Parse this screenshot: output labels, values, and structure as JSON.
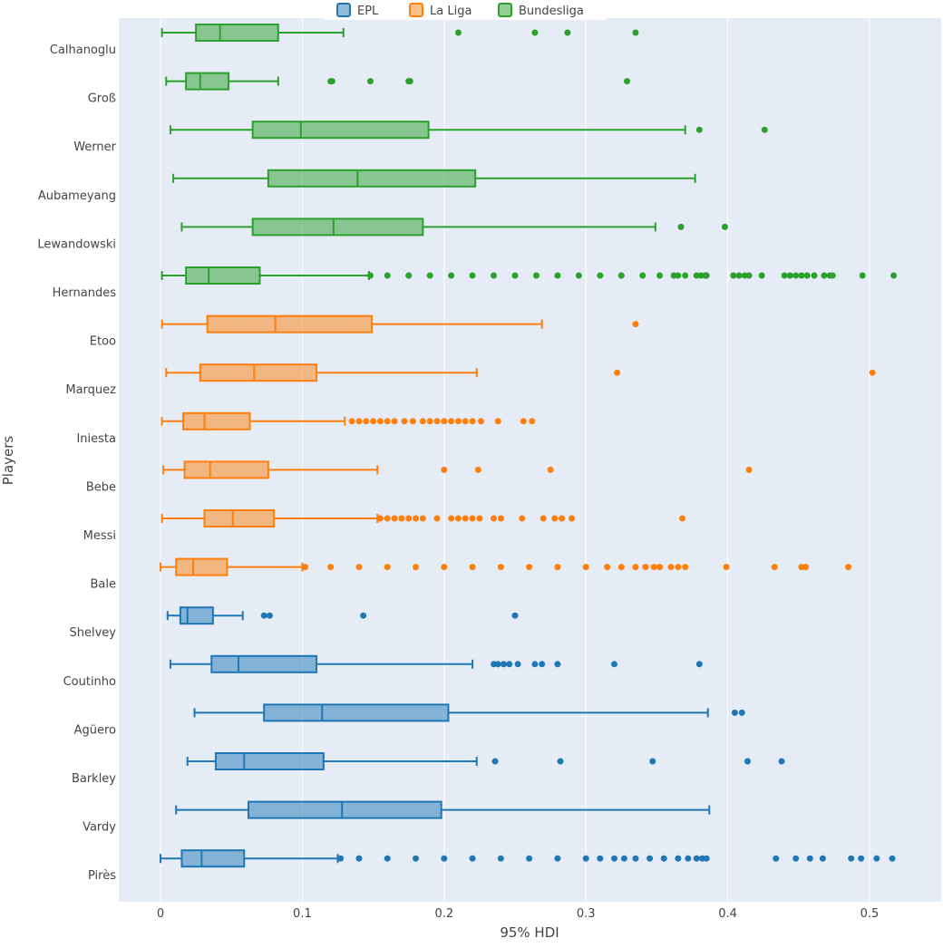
{
  "chart_data": {
    "type": "box",
    "orientation": "horizontal",
    "xlabel": "95% HDI",
    "ylabel": "Players",
    "xlim": [
      -0.03,
      0.55
    ],
    "xticks": [
      0,
      0.1,
      0.2,
      0.3,
      0.4,
      0.5
    ],
    "xtick_labels": [
      "0",
      "0.1",
      "0.2",
      "0.3",
      "0.4",
      "0.5"
    ],
    "legend": {
      "position": "top",
      "entries": [
        {
          "name": "EPL",
          "color": "#1f77b4"
        },
        {
          "name": "La Liga",
          "color": "#ff7f0e"
        },
        {
          "name": "Bundesliga",
          "color": "#2ca02c"
        }
      ]
    },
    "players": [
      {
        "name": "Calhanoglu",
        "league": "Bundesliga",
        "min": 0.001,
        "q1": 0.025,
        "median": 0.042,
        "q3": 0.083,
        "max": 0.129,
        "outliers": [
          0.21,
          0.264,
          0.287,
          0.335
        ]
      },
      {
        "name": "Groß",
        "league": "Bundesliga",
        "min": 0.004,
        "q1": 0.018,
        "median": 0.028,
        "q3": 0.048,
        "max": 0.083,
        "outliers": [
          0.12,
          0.121,
          0.148,
          0.175,
          0.176,
          0.329
        ]
      },
      {
        "name": "Werner",
        "league": "Bundesliga",
        "min": 0.007,
        "q1": 0.065,
        "median": 0.099,
        "q3": 0.189,
        "max": 0.37,
        "outliers": [
          0.38,
          0.426
        ]
      },
      {
        "name": "Aubameyang",
        "league": "Bundesliga",
        "min": 0.009,
        "q1": 0.076,
        "median": 0.139,
        "q3": 0.222,
        "max": 0.377,
        "outliers": []
      },
      {
        "name": "Lewandowski",
        "league": "Bundesliga",
        "min": 0.015,
        "q1": 0.065,
        "median": 0.122,
        "q3": 0.185,
        "max": 0.349,
        "outliers": [
          0.367,
          0.398
        ]
      },
      {
        "name": "Hernandes",
        "league": "Bundesliga",
        "min": 0.001,
        "q1": 0.018,
        "median": 0.034,
        "q3": 0.07,
        "max": 0.147,
        "outliers": [
          0.148,
          0.16,
          0.175,
          0.19,
          0.205,
          0.22,
          0.235,
          0.25,
          0.265,
          0.28,
          0.295,
          0.31,
          0.325,
          0.34,
          0.352,
          0.362,
          0.365,
          0.37,
          0.378,
          0.381,
          0.384,
          0.385,
          0.404,
          0.408,
          0.412,
          0.415,
          0.424,
          0.44,
          0.444,
          0.448,
          0.452,
          0.456,
          0.461,
          0.468,
          0.472,
          0.474,
          0.495,
          0.517
        ]
      },
      {
        "name": "Etoo",
        "league": "La Liga",
        "min": 0.001,
        "q1": 0.033,
        "median": 0.081,
        "q3": 0.149,
        "max": 0.269,
        "outliers": [
          0.335
        ]
      },
      {
        "name": "Marquez",
        "league": "La Liga",
        "min": 0.004,
        "q1": 0.028,
        "median": 0.066,
        "q3": 0.11,
        "max": 0.223,
        "outliers": [
          0.322,
          0.502
        ]
      },
      {
        "name": "Iniesta",
        "league": "La Liga",
        "min": 0.001,
        "q1": 0.016,
        "median": 0.031,
        "q3": 0.063,
        "max": 0.13,
        "outliers": [
          0.135,
          0.14,
          0.145,
          0.15,
          0.155,
          0.16,
          0.165,
          0.172,
          0.178,
          0.185,
          0.19,
          0.195,
          0.2,
          0.205,
          0.21,
          0.215,
          0.22,
          0.226,
          0.238,
          0.256,
          0.262
        ]
      },
      {
        "name": "Bebe",
        "league": "La Liga",
        "min": 0.002,
        "q1": 0.017,
        "median": 0.035,
        "q3": 0.076,
        "max": 0.153,
        "outliers": [
          0.2,
          0.224,
          0.275,
          0.415
        ]
      },
      {
        "name": "Messi",
        "league": "La Liga",
        "min": 0.001,
        "q1": 0.031,
        "median": 0.051,
        "q3": 0.08,
        "max": 0.153,
        "outliers": [
          0.155,
          0.16,
          0.165,
          0.17,
          0.175,
          0.18,
          0.185,
          0.195,
          0.205,
          0.21,
          0.215,
          0.22,
          0.225,
          0.235,
          0.24,
          0.255,
          0.27,
          0.278,
          0.283,
          0.29,
          0.368
        ]
      },
      {
        "name": "Bale",
        "league": "La Liga",
        "min": 0.0,
        "q1": 0.011,
        "median": 0.023,
        "q3": 0.047,
        "max": 0.1,
        "outliers": [
          0.102,
          0.12,
          0.14,
          0.16,
          0.18,
          0.2,
          0.22,
          0.24,
          0.26,
          0.28,
          0.3,
          0.315,
          0.325,
          0.335,
          0.342,
          0.348,
          0.352,
          0.36,
          0.365,
          0.37,
          0.399,
          0.433,
          0.452,
          0.455,
          0.485
        ]
      },
      {
        "name": "Shelvey",
        "league": "EPL",
        "min": 0.005,
        "q1": 0.014,
        "median": 0.019,
        "q3": 0.037,
        "max": 0.058,
        "outliers": [
          0.073,
          0.077,
          0.143,
          0.25
        ]
      },
      {
        "name": "Coutinho",
        "league": "EPL",
        "min": 0.007,
        "q1": 0.036,
        "median": 0.055,
        "q3": 0.11,
        "max": 0.22,
        "outliers": [
          0.235,
          0.238,
          0.242,
          0.246,
          0.252,
          0.264,
          0.269,
          0.28,
          0.32,
          0.38
        ]
      },
      {
        "name": "Agüero",
        "league": "EPL",
        "min": 0.024,
        "q1": 0.073,
        "median": 0.114,
        "q3": 0.203,
        "max": 0.386,
        "outliers": [
          0.405,
          0.41
        ]
      },
      {
        "name": "Barkley",
        "league": "EPL",
        "min": 0.019,
        "q1": 0.039,
        "median": 0.059,
        "q3": 0.115,
        "max": 0.223,
        "outliers": [
          0.236,
          0.282,
          0.347,
          0.414,
          0.438
        ]
      },
      {
        "name": "Vardy",
        "league": "EPL",
        "min": 0.011,
        "q1": 0.062,
        "median": 0.128,
        "q3": 0.198,
        "max": 0.387,
        "outliers": []
      },
      {
        "name": "Pirès",
        "league": "EPL",
        "min": 0.0,
        "q1": 0.015,
        "median": 0.029,
        "q3": 0.059,
        "max": 0.125,
        "outliers": [
          0.127,
          0.14,
          0.16,
          0.18,
          0.2,
          0.22,
          0.24,
          0.26,
          0.28,
          0.3,
          0.31,
          0.32,
          0.327,
          0.335,
          0.345,
          0.355,
          0.365,
          0.372,
          0.378,
          0.382,
          0.385,
          0.434,
          0.448,
          0.458,
          0.467,
          0.487,
          0.494,
          0.505,
          0.516
        ]
      }
    ]
  }
}
